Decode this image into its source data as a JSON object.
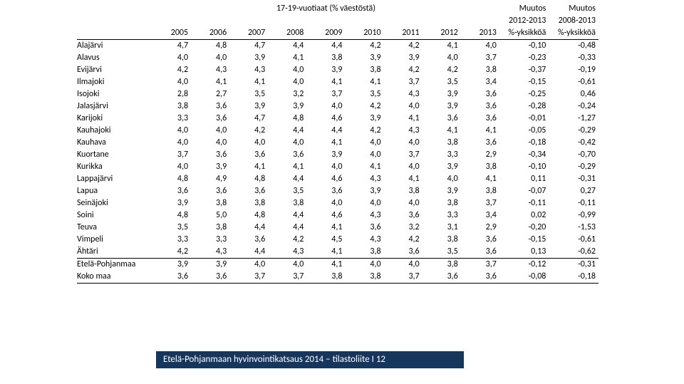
{
  "title": "17-19-vuotiaat (% väestöstä)",
  "change1_header_top": "Muutos",
  "change1_header_bottom": "2012-2013",
  "change2_header_top": "Muutos",
  "change2_header_bottom": "2008-2013",
  "unit_years": "%-yksikköä",
  "years": [
    "2005",
    "2006",
    "2007",
    "2008",
    "2009",
    "2010",
    "2011",
    "2012",
    "2013"
  ],
  "rows": [
    {
      "name": "Alajärvi",
      "v": [
        "4,7",
        "4,8",
        "4,7",
        "4,4",
        "4,4",
        "4,2",
        "4,2",
        "4,1",
        "4,0"
      ],
      "c1": "-0,10",
      "c2": "-0,48"
    },
    {
      "name": "Alavus",
      "v": [
        "4,0",
        "4,0",
        "3,9",
        "4,1",
        "3,8",
        "3,9",
        "3,9",
        "4,0",
        "3,7"
      ],
      "c1": "-0,23",
      "c2": "-0,33"
    },
    {
      "name": "Evijärvi",
      "v": [
        "4,2",
        "4,3",
        "4,3",
        "4,0",
        "3,9",
        "3,8",
        "4,2",
        "4,2",
        "3,8"
      ],
      "c1": "-0,37",
      "c2": "-0,19"
    },
    {
      "name": "Ilmajoki",
      "v": [
        "4,0",
        "4,1",
        "4,1",
        "4,0",
        "4,1",
        "4,1",
        "3,7",
        "3,5",
        "3,4"
      ],
      "c1": "-0,15",
      "c2": "-0,61"
    },
    {
      "name": "Isojoki",
      "v": [
        "2,8",
        "2,7",
        "3,5",
        "3,2",
        "3,7",
        "3,5",
        "4,3",
        "3,9",
        "3,6"
      ],
      "c1": "-0,25",
      "c2": "0,46"
    },
    {
      "name": "Jalasjärvi",
      "v": [
        "3,8",
        "3,6",
        "3,9",
        "3,9",
        "4,0",
        "4,2",
        "4,0",
        "3,9",
        "3,6"
      ],
      "c1": "-0,28",
      "c2": "-0,24"
    },
    {
      "name": "Karijoki",
      "v": [
        "3,3",
        "3,6",
        "4,7",
        "4,8",
        "4,6",
        "3,9",
        "4,1",
        "3,6",
        "3,6"
      ],
      "c1": "-0,01",
      "c2": "-1,27"
    },
    {
      "name": "Kauhajoki",
      "v": [
        "4,0",
        "4,0",
        "4,2",
        "4,4",
        "4,4",
        "4,2",
        "4,3",
        "4,1",
        "4,1"
      ],
      "c1": "-0,05",
      "c2": "-0,29"
    },
    {
      "name": "Kauhava",
      "v": [
        "4,0",
        "4,0",
        "4,0",
        "4,0",
        "4,1",
        "4,0",
        "4,0",
        "3,8",
        "3,6"
      ],
      "c1": "-0,18",
      "c2": "-0,42"
    },
    {
      "name": "Kuortane",
      "v": [
        "3,7",
        "3,6",
        "3,6",
        "3,6",
        "3,9",
        "4,0",
        "3,7",
        "3,3",
        "2,9"
      ],
      "c1": "-0,34",
      "c2": "-0,70"
    },
    {
      "name": "Kurikka",
      "v": [
        "4,0",
        "3,9",
        "4,1",
        "4,1",
        "4,0",
        "4,1",
        "4,0",
        "3,9",
        "3,8"
      ],
      "c1": "-0,10",
      "c2": "-0,29"
    },
    {
      "name": "Lappajärvi",
      "v": [
        "4,8",
        "4,9",
        "4,8",
        "4,4",
        "4,6",
        "4,3",
        "4,1",
        "4,0",
        "4,1"
      ],
      "c1": "0,11",
      "c2": "-0,31"
    },
    {
      "name": "Lapua",
      "v": [
        "3,6",
        "3,6",
        "3,6",
        "3,5",
        "3,6",
        "3,9",
        "3,8",
        "3,9",
        "3,8"
      ],
      "c1": "-0,07",
      "c2": "0,27"
    },
    {
      "name": "Seinäjoki",
      "v": [
        "3,9",
        "3,8",
        "3,8",
        "3,8",
        "4,0",
        "4,0",
        "4,0",
        "3,8",
        "3,7"
      ],
      "c1": "-0,11",
      "c2": "-0,11"
    },
    {
      "name": "Soini",
      "v": [
        "4,8",
        "5,0",
        "4,8",
        "4,4",
        "4,6",
        "4,3",
        "3,6",
        "3,3",
        "3,4"
      ],
      "c1": "0,02",
      "c2": "-0,99"
    },
    {
      "name": "Teuva",
      "v": [
        "3,5",
        "3,8",
        "4,4",
        "4,4",
        "4,1",
        "3,6",
        "3,2",
        "3,1",
        "2,9"
      ],
      "c1": "-0,20",
      "c2": "-1,53"
    },
    {
      "name": "Vimpeli",
      "v": [
        "3,3",
        "3,3",
        "3,6",
        "4,2",
        "4,5",
        "4,3",
        "4,2",
        "3,8",
        "3,6"
      ],
      "c1": "-0,15",
      "c2": "-0,61"
    },
    {
      "name": "Ähtäri",
      "v": [
        "4,2",
        "4,3",
        "4,4",
        "4,3",
        "4,1",
        "3,8",
        "3,6",
        "3,5",
        "3,6"
      ],
      "c1": "0,13",
      "c2": "-0,62"
    }
  ],
  "summary": [
    {
      "name": "Etelä-Pohjanmaa",
      "v": [
        "3,9",
        "3,9",
        "4,0",
        "4,0",
        "4,1",
        "4,0",
        "4,0",
        "3,8",
        "3,7"
      ],
      "c1": "-0,12",
      "c2": "-0,31"
    },
    {
      "name": "Koko maa",
      "v": [
        "3,6",
        "3,6",
        "3,7",
        "3,7",
        "3,8",
        "3,8",
        "3,7",
        "3,6",
        "3,6"
      ],
      "c1": "-0,08",
      "c2": "-0,18"
    }
  ],
  "footer": "Etelä-Pohjanmaan hyvinvointikatsaus 2014 – tilastoliite I 12",
  "colors": {
    "footer_bg": "#17365d",
    "footer_text": "#ffffff",
    "text": "#000000",
    "bg": "#ffffff"
  },
  "font_size": 12
}
